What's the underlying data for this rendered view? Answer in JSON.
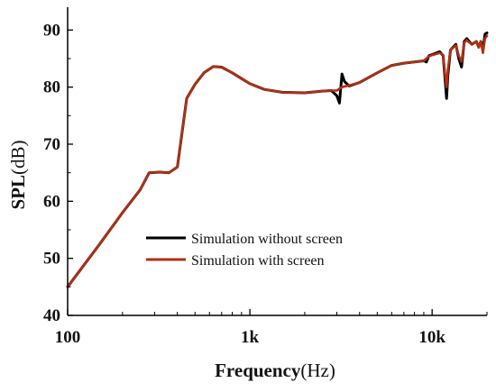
{
  "chart_data": {
    "type": "line",
    "title": "",
    "xlabel_bold": "Frequency",
    "xlabel_unit": "(Hz)",
    "ylabel_bold": "SPL",
    "ylabel_unit": "(dB)",
    "x_scale": "log",
    "xlim": [
      100,
      20000
    ],
    "ylim": [
      40,
      94
    ],
    "x_ticks": [
      100,
      1000,
      10000
    ],
    "x_tick_labels": [
      "100",
      "1k",
      "10k"
    ],
    "y_ticks": [
      40,
      50,
      60,
      70,
      80,
      90
    ],
    "y_tick_labels": [
      "40",
      "50",
      "60",
      "70",
      "80",
      "90"
    ],
    "grid": false,
    "legend_position": "center-left",
    "series": [
      {
        "name": "Simulation without screen",
        "color": "#000000",
        "points": [
          [
            100,
            45
          ],
          [
            150,
            52.5
          ],
          [
            200,
            58
          ],
          [
            250,
            62
          ],
          [
            280,
            65
          ],
          [
            320,
            65.1
          ],
          [
            360,
            65
          ],
          [
            400,
            66
          ],
          [
            450,
            78
          ],
          [
            500,
            80.5
          ],
          [
            560,
            82.5
          ],
          [
            630,
            83.6
          ],
          [
            700,
            83.5
          ],
          [
            800,
            82.5
          ],
          [
            900,
            81.5
          ],
          [
            1000,
            80.6
          ],
          [
            1200,
            79.6
          ],
          [
            1500,
            79.1
          ],
          [
            2000,
            79
          ],
          [
            2500,
            79.3
          ],
          [
            2800,
            79.4
          ],
          [
            3000,
            78.5
          ],
          [
            3100,
            77.2
          ],
          [
            3200,
            82.3
          ],
          [
            3300,
            81
          ],
          [
            3500,
            80.2
          ],
          [
            4000,
            80.8
          ],
          [
            5000,
            82.5
          ],
          [
            6000,
            83.8
          ],
          [
            7000,
            84.2
          ],
          [
            8000,
            84.4
          ],
          [
            9000,
            84.6
          ],
          [
            9300,
            84.4
          ],
          [
            9600,
            85.5
          ],
          [
            10000,
            85.7
          ],
          [
            11000,
            86.2
          ],
          [
            11500,
            85.5
          ],
          [
            11800,
            81
          ],
          [
            12000,
            78
          ],
          [
            12200,
            82
          ],
          [
            12600,
            86.5
          ],
          [
            13500,
            87.5
          ],
          [
            14000,
            85
          ],
          [
            14500,
            83.5
          ],
          [
            15000,
            88
          ],
          [
            15500,
            88.5
          ],
          [
            16500,
            87.5
          ],
          [
            17500,
            88
          ],
          [
            18000,
            87
          ],
          [
            18500,
            88
          ],
          [
            19000,
            86.5
          ],
          [
            19500,
            89.3
          ],
          [
            20000,
            89.5
          ]
        ]
      },
      {
        "name": "Simulation  with screen",
        "color": "#b03013",
        "points": [
          [
            100,
            45
          ],
          [
            150,
            52.5
          ],
          [
            200,
            58
          ],
          [
            250,
            62
          ],
          [
            280,
            65
          ],
          [
            320,
            65.1
          ],
          [
            360,
            65
          ],
          [
            400,
            66
          ],
          [
            450,
            78
          ],
          [
            500,
            80.5
          ],
          [
            560,
            82.5
          ],
          [
            630,
            83.6
          ],
          [
            700,
            83.5
          ],
          [
            800,
            82.5
          ],
          [
            900,
            81.5
          ],
          [
            1000,
            80.6
          ],
          [
            1200,
            79.6
          ],
          [
            1500,
            79.1
          ],
          [
            2000,
            79
          ],
          [
            2500,
            79.3
          ],
          [
            2800,
            79.4
          ],
          [
            3000,
            79.4
          ],
          [
            3200,
            80
          ],
          [
            3500,
            80.3
          ],
          [
            4000,
            80.8
          ],
          [
            5000,
            82.5
          ],
          [
            6000,
            83.8
          ],
          [
            7000,
            84.2
          ],
          [
            8000,
            84.4
          ],
          [
            9000,
            84.6
          ],
          [
            9600,
            85.4
          ],
          [
            10000,
            85.6
          ],
          [
            11000,
            86
          ],
          [
            11500,
            85.6
          ],
          [
            11800,
            82
          ],
          [
            12000,
            80
          ],
          [
            12200,
            83
          ],
          [
            12600,
            86.5
          ],
          [
            13500,
            87.3
          ],
          [
            14000,
            85.5
          ],
          [
            14500,
            84.5
          ],
          [
            15000,
            87.8
          ],
          [
            15500,
            88.2
          ],
          [
            16500,
            87.5
          ],
          [
            17500,
            88
          ],
          [
            18000,
            87
          ],
          [
            18500,
            88
          ],
          [
            19000,
            86
          ],
          [
            19500,
            88.5
          ],
          [
            20000,
            89
          ]
        ]
      }
    ]
  }
}
